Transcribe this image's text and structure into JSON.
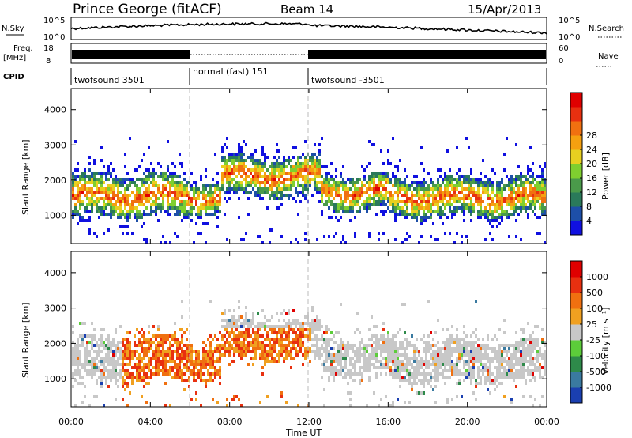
{
  "header": {
    "station": "Prince George (fitACF)",
    "beam": "Beam 14",
    "date": "15/Apr/2013"
  },
  "status": {
    "nsky_label": "N.Sky",
    "nsearch_label": "N.Search",
    "freq_label_1": "Freq.",
    "freq_label_2": "[MHz]",
    "nave_label": "Nave",
    "cpid_label": "CPID",
    "nsky_ticks": [
      "10^5",
      "10^0"
    ],
    "nsearch_ticks": [
      "10^5",
      "10^0"
    ],
    "freq_ticks": [
      "18",
      "8"
    ],
    "nave_ticks": [
      "60",
      "0"
    ],
    "cpid_segments": [
      {
        "label": "twofsound 3501",
        "start": 0,
        "end": 6
      },
      {
        "label": "normal (fast) 151",
        "start": 6,
        "end": 12
      },
      {
        "label": "twofsound -3501",
        "start": 12,
        "end": 24
      }
    ]
  },
  "chart_data": [
    {
      "type": "heatmap",
      "name": "power-panel",
      "xlabel": "Time UT",
      "ylabel": "Slant Range [km]",
      "xlim": [
        0,
        24
      ],
      "ylim": [
        200,
        4600
      ],
      "x_ticks": [
        "00:00",
        "04:00",
        "08:00",
        "12:00",
        "16:00",
        "20:00",
        "00:00"
      ],
      "y_ticks": [
        "1000",
        "2000",
        "3000",
        "4000"
      ],
      "y_tick_values": [
        1000,
        2000,
        3000,
        4000
      ],
      "colorbar": {
        "label": "Power [dB]",
        "ticks": [
          "4",
          "8",
          "12",
          "16",
          "20",
          "24",
          "28"
        ],
        "colors": [
          "#1010e0",
          "#1d4fa8",
          "#2a7a5a",
          "#4a9a4a",
          "#7fcf2f",
          "#e8d020",
          "#f5a010",
          "#f07010",
          "#e83010",
          "#e00000"
        ]
      },
      "bands": [
        {
          "t0": 0.0,
          "t1": 6.0,
          "r_lo": 1000,
          "r_hi": 2200
        },
        {
          "t0": 6.0,
          "t1": 7.5,
          "r_lo": 1100,
          "r_hi": 2000
        },
        {
          "t0": 7.5,
          "t1": 12.5,
          "r_lo": 1600,
          "r_hi": 2700
        },
        {
          "t0": 12.5,
          "t1": 16.0,
          "r_lo": 1200,
          "r_hi": 2200
        },
        {
          "t0": 16.0,
          "t1": 24.0,
          "r_lo": 1000,
          "r_hi": 2100
        }
      ],
      "mode_change_times": [
        6,
        12
      ]
    },
    {
      "type": "heatmap",
      "name": "velocity-panel",
      "xlabel": "Time UT",
      "ylabel": "Slant Range [km]",
      "xlim": [
        0,
        24
      ],
      "ylim": [
        200,
        4600
      ],
      "x_ticks": [
        "00:00",
        "04:00",
        "08:00",
        "12:00",
        "16:00",
        "20:00",
        "00:00"
      ],
      "y_ticks": [
        "1000",
        "2000",
        "3000",
        "4000"
      ],
      "y_tick_values": [
        1000,
        2000,
        3000,
        4000
      ],
      "colorbar": {
        "label": "Velocity [m s⁻¹]",
        "ticks": [
          "1000",
          "500",
          "100",
          "25",
          "-25",
          "-100",
          "-500",
          "-1000"
        ],
        "colors": [
          "#1a3fb0",
          "#3a7aa0",
          "#2e8a4a",
          "#5ccc3a",
          "#c8c8c8",
          "#f0a020",
          "#f07010",
          "#e83010",
          "#e00000"
        ]
      },
      "bands": [
        {
          "t0": 0.0,
          "t1": 6.0,
          "r_lo": 1000,
          "r_hi": 2200
        },
        {
          "t0": 6.0,
          "t1": 7.5,
          "r_lo": 1100,
          "r_hi": 2000
        },
        {
          "t0": 7.5,
          "t1": 12.5,
          "r_lo": 1600,
          "r_hi": 2700
        },
        {
          "t0": 12.5,
          "t1": 16.0,
          "r_lo": 1200,
          "r_hi": 2200
        },
        {
          "t0": 16.0,
          "t1": 24.0,
          "r_lo": 1000,
          "r_hi": 2100
        }
      ],
      "mode_change_times": [
        6,
        12
      ]
    }
  ]
}
